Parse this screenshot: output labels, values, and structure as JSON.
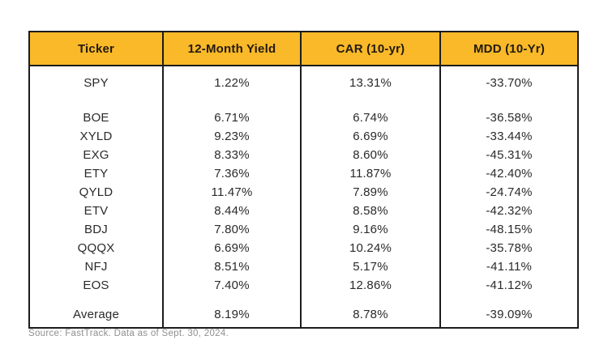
{
  "chart_data": {
    "type": "table",
    "columns": [
      "Ticker",
      "12-Month Yield",
      "CAR (10-yr)",
      "MDD (10-Yr)"
    ],
    "benchmark_row": [
      "SPY",
      "1.22%",
      "13.31%",
      "-33.70%"
    ],
    "rows": [
      [
        "BOE",
        "6.71%",
        "6.74%",
        "-36.58%"
      ],
      [
        "XYLD",
        "9.23%",
        "6.69%",
        "-33.44%"
      ],
      [
        "EXG",
        "8.33%",
        "8.60%",
        "-45.31%"
      ],
      [
        "ETY",
        "7.36%",
        "11.87%",
        "-42.40%"
      ],
      [
        "QYLD",
        "11.47%",
        "7.89%",
        "-24.74%"
      ],
      [
        "ETV",
        "8.44%",
        "8.58%",
        "-42.32%"
      ],
      [
        "BDJ",
        "7.80%",
        "9.16%",
        "-48.15%"
      ],
      [
        "QQQX",
        "6.69%",
        "10.24%",
        "-35.78%"
      ],
      [
        "NFJ",
        "8.51%",
        "5.17%",
        "-41.11%"
      ],
      [
        "EOS",
        "7.40%",
        "12.86%",
        "-41.12%"
      ]
    ],
    "average_row": [
      "Average",
      "8.19%",
      "8.78%",
      "-39.09%"
    ]
  },
  "source_note": "Source: FastTrack. Data as of Sept. 30, 2024.",
  "colors": {
    "header_bg": "#F9B928",
    "header_text": "#221a10",
    "border": "#1c1c1c",
    "body_text": "#2a2a2a",
    "source_text": "#8f8f8f"
  }
}
